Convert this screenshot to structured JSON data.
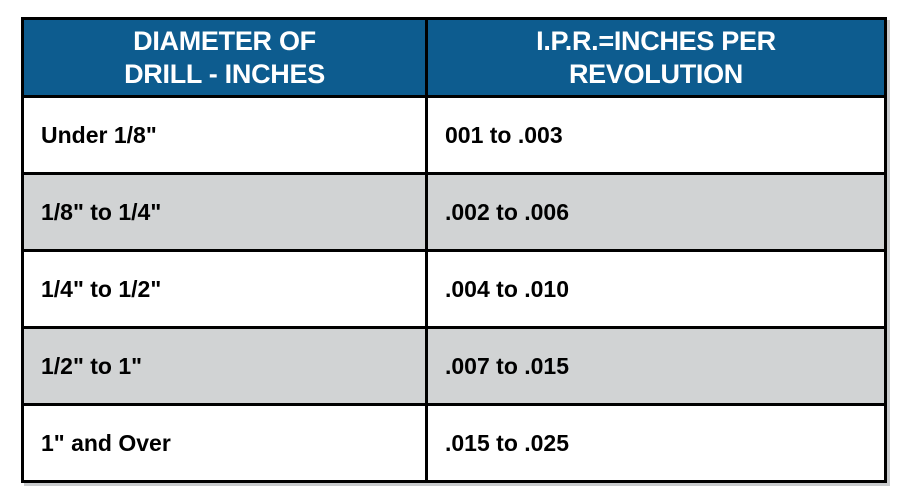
{
  "colors": {
    "header_bg": "#0d5c8f",
    "header_text": "#ffffff",
    "row_bg": "#ffffff",
    "row_alt_bg": "#d1d3d4",
    "border": "#000000",
    "body_text": "#000000",
    "shadow": "#c9cbcd"
  },
  "header": {
    "col1": {
      "line1": "DIAMETER OF",
      "line2": "DRILL - INCHES"
    },
    "col2": {
      "line1": "I.P.R.=INCHES PER",
      "line2": "REVOLUTION"
    }
  },
  "rows": [
    {
      "diameter": "Under 1/8\"",
      "ipr": "001 to .003"
    },
    {
      "diameter": "1/8\" to 1/4\"",
      "ipr": ".002 to .006"
    },
    {
      "diameter": "1/4\" to 1/2\"",
      "ipr": ".004 to .010"
    },
    {
      "diameter": "1/2\" to 1\"",
      "ipr": ".007 to .015"
    },
    {
      "diameter": "1\" and Over",
      "ipr": ".015 to .025"
    }
  ],
  "chart_data": {
    "type": "table",
    "columns": [
      "DIAMETER OF DRILL - INCHES",
      "I.P.R.=INCHES PER REVOLUTION"
    ],
    "rows": [
      [
        "Under 1/8\"",
        "001 to .003"
      ],
      [
        "1/8\" to 1/4\"",
        ".002 to .006"
      ],
      [
        "1/4\" to 1/2\"",
        ".004 to .010"
      ],
      [
        "1/2\" to 1\"",
        ".007 to .015"
      ],
      [
        "1\" and Over",
        ".015 to .025"
      ]
    ]
  }
}
